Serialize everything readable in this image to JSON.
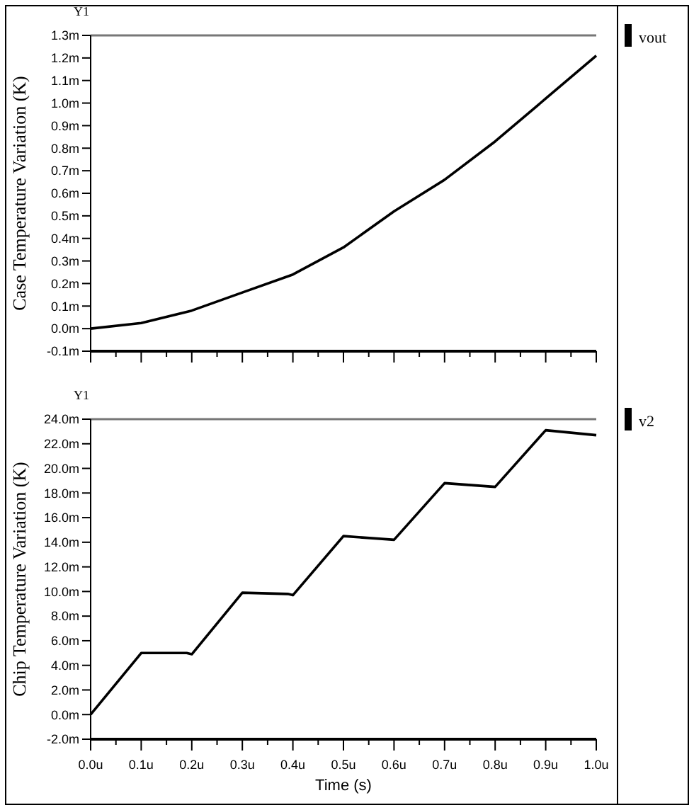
{
  "chart_data": [
    {
      "type": "line",
      "ylabel": "Case Temperature Variation (K)",
      "annotations": [
        "Y1"
      ],
      "legend": "top right",
      "tick_labels": "y",
      "grid": false,
      "x": [
        0,
        0.1,
        0.2,
        0.3,
        0.4,
        0.5,
        0.6,
        0.7,
        0.8,
        0.9,
        1.0
      ],
      "series": [
        {
          "name": "vout",
          "color": "#000000",
          "values": [
            0,
            0.025,
            0.08,
            0.16,
            0.24,
            0.36,
            0.52,
            0.66,
            0.83,
            1.02,
            1.21
          ]
        }
      ],
      "xlim": [
        0,
        1
      ],
      "xticks": [
        0,
        0.1,
        0.2,
        0.3,
        0.4,
        0.5,
        0.6,
        0.7,
        0.8,
        0.9,
        1.0
      ],
      "ylim": [
        -0.1,
        1.3
      ],
      "yticks": [
        {
          "value": -0.1,
          "label": "-0.1m"
        },
        {
          "value": 0,
          "label": "0.0m"
        },
        {
          "value": 0.1,
          "label": "0.1m"
        },
        {
          "value": 0.2,
          "label": "0.2m"
        },
        {
          "value": 0.3,
          "label": "0.3m"
        },
        {
          "value": 0.4,
          "label": "0.4m"
        },
        {
          "value": 0.5,
          "label": "0.5m"
        },
        {
          "value": 0.6,
          "label": "0.6m"
        },
        {
          "value": 0.7,
          "label": "0.7m"
        },
        {
          "value": 0.8,
          "label": "0.8m"
        },
        {
          "value": 0.9,
          "label": "0.9m"
        },
        {
          "value": 1.0,
          "label": "1.0m"
        },
        {
          "value": 1.1,
          "label": "1.1m"
        },
        {
          "value": 1.2,
          "label": "1.2m"
        },
        {
          "value": 1.3,
          "label": "1.3m"
        }
      ]
    },
    {
      "type": "line",
      "ylabel": "Chip Temperature Variation (K)",
      "xlabel": "Time (s)",
      "annotations": [
        "Y1"
      ],
      "legend": "top right",
      "grid": false,
      "x": [
        0,
        0.1,
        0.19,
        0.2,
        0.3,
        0.39,
        0.4,
        0.5,
        0.6,
        0.7,
        0.8,
        0.9,
        1.0
      ],
      "series": [
        {
          "name": "v2",
          "color": "#000000",
          "values": [
            0,
            5.0,
            5.0,
            4.9,
            9.9,
            9.8,
            9.7,
            14.5,
            14.2,
            18.8,
            18.5,
            23.1,
            22.7
          ]
        }
      ],
      "xlim": [
        0,
        1
      ],
      "xticks": [
        {
          "value": 0,
          "label": "0.0u"
        },
        {
          "value": 0.1,
          "label": "0.1u"
        },
        {
          "value": 0.2,
          "label": "0.2u"
        },
        {
          "value": 0.3,
          "label": "0.3u"
        },
        {
          "value": 0.4,
          "label": "0.4u"
        },
        {
          "value": 0.5,
          "label": "0.5u"
        },
        {
          "value": 0.6,
          "label": "0.6u"
        },
        {
          "value": 0.7,
          "label": "0.7u"
        },
        {
          "value": 0.8,
          "label": "0.8u"
        },
        {
          "value": 0.9,
          "label": "0.9u"
        },
        {
          "value": 1.0,
          "label": "1.0u"
        }
      ],
      "ylim": [
        -2,
        24
      ],
      "yticks": [
        {
          "value": -2,
          "label": "-2.0m"
        },
        {
          "value": 0,
          "label": "0.0m"
        },
        {
          "value": 2,
          "label": "2.0m"
        },
        {
          "value": 4,
          "label": "4.0m"
        },
        {
          "value": 6,
          "label": "6.0m"
        },
        {
          "value": 8,
          "label": "8.0m"
        },
        {
          "value": 10,
          "label": "10.0m"
        },
        {
          "value": 12,
          "label": "12.0m"
        },
        {
          "value": 14,
          "label": "14.0m"
        },
        {
          "value": 16,
          "label": "16.0m"
        },
        {
          "value": 18,
          "label": "18.0m"
        },
        {
          "value": 20,
          "label": "20.0m"
        },
        {
          "value": 22,
          "label": "22.0m"
        },
        {
          "value": 24,
          "label": "24.0m"
        }
      ]
    }
  ]
}
